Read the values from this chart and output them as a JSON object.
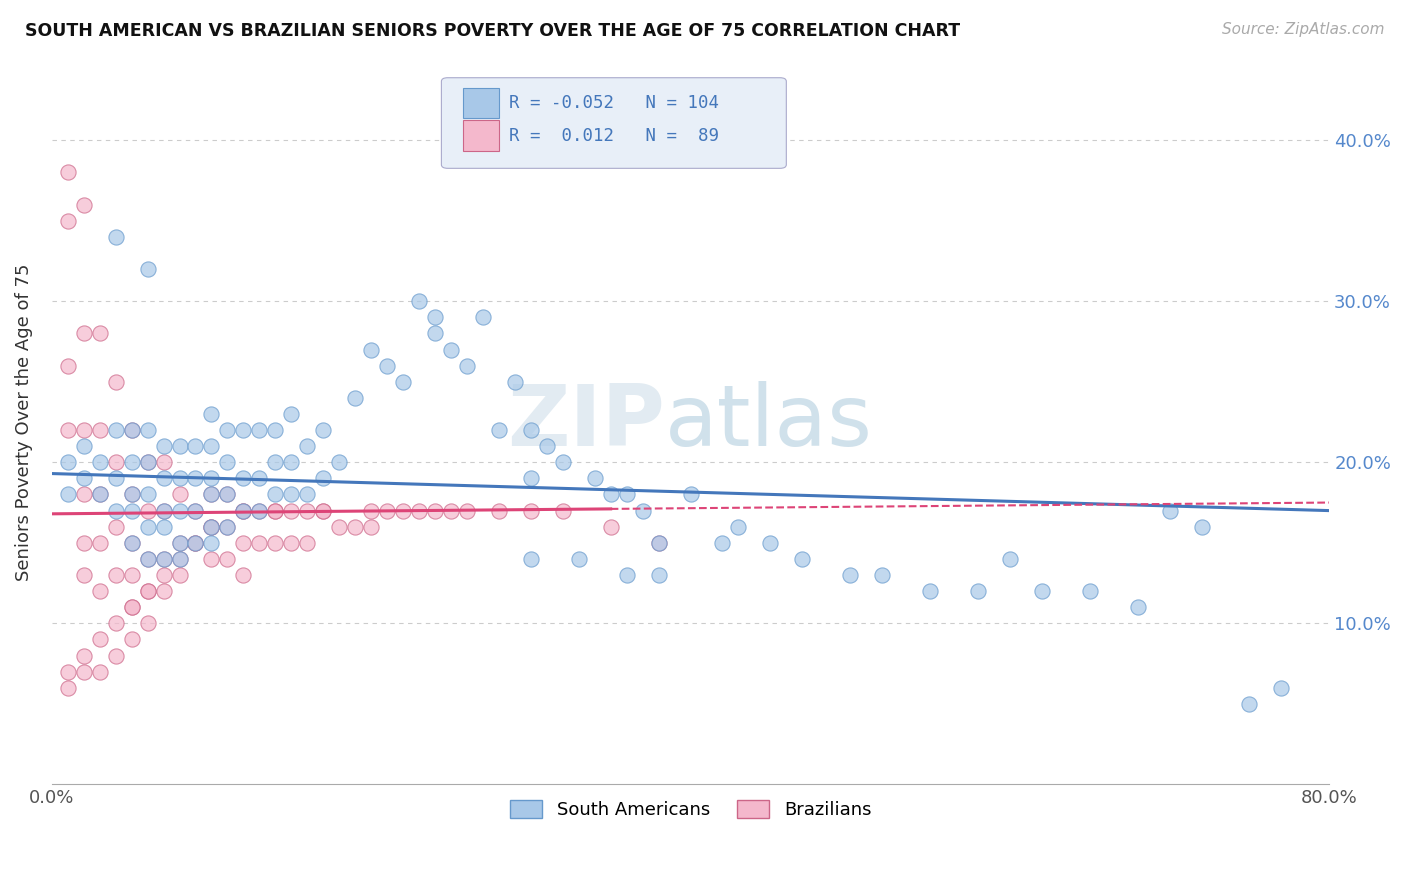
{
  "title": "SOUTH AMERICAN VS BRAZILIAN SENIORS POVERTY OVER THE AGE OF 75 CORRELATION CHART",
  "source": "Source: ZipAtlas.com",
  "ylabel": "Seniors Poverty Over the Age of 75",
  "xlim": [
    0.0,
    0.8
  ],
  "ylim": [
    0.0,
    0.45
  ],
  "grid_color": "#cccccc",
  "background_color": "#ffffff",
  "south_american_color": "#a8c8e8",
  "south_american_edge": "#6699cc",
  "brazilian_color": "#f4b8cc",
  "brazilian_edge": "#cc6688",
  "south_american_line_color": "#4477bb",
  "brazilian_line_color": "#dd4477",
  "r_south_american": -0.052,
  "n_south_american": 104,
  "r_brazilian": 0.012,
  "n_brazilian": 89,
  "legend_labels": [
    "South Americans",
    "Brazilians"
  ],
  "watermark_zip": "ZIP",
  "watermark_atlas": "atlas",
  "sa_trend_y0": 0.193,
  "sa_trend_y1": 0.17,
  "br_trend_y0": 0.168,
  "br_trend_y1": 0.175,
  "south_american_x": [
    0.01,
    0.01,
    0.02,
    0.02,
    0.03,
    0.03,
    0.04,
    0.04,
    0.04,
    0.05,
    0.05,
    0.05,
    0.05,
    0.05,
    0.06,
    0.06,
    0.06,
    0.06,
    0.06,
    0.07,
    0.07,
    0.07,
    0.07,
    0.07,
    0.08,
    0.08,
    0.08,
    0.08,
    0.08,
    0.09,
    0.09,
    0.09,
    0.09,
    0.1,
    0.1,
    0.1,
    0.1,
    0.1,
    0.1,
    0.11,
    0.11,
    0.11,
    0.11,
    0.12,
    0.12,
    0.12,
    0.13,
    0.13,
    0.13,
    0.14,
    0.14,
    0.14,
    0.15,
    0.15,
    0.15,
    0.16,
    0.16,
    0.17,
    0.17,
    0.18,
    0.19,
    0.2,
    0.21,
    0.22,
    0.23,
    0.24,
    0.24,
    0.25,
    0.26,
    0.27,
    0.28,
    0.29,
    0.3,
    0.3,
    0.31,
    0.32,
    0.34,
    0.35,
    0.36,
    0.37,
    0.4,
    0.43,
    0.45,
    0.47,
    0.5,
    0.52,
    0.55,
    0.58,
    0.6,
    0.62,
    0.65,
    0.68,
    0.7,
    0.72,
    0.75,
    0.77,
    0.38,
    0.42,
    0.3,
    0.33,
    0.36,
    0.38,
    0.04,
    0.06
  ],
  "south_american_y": [
    0.18,
    0.2,
    0.19,
    0.21,
    0.18,
    0.2,
    0.17,
    0.19,
    0.22,
    0.15,
    0.17,
    0.18,
    0.2,
    0.22,
    0.14,
    0.16,
    0.18,
    0.2,
    0.22,
    0.14,
    0.16,
    0.17,
    0.19,
    0.21,
    0.14,
    0.15,
    0.17,
    0.19,
    0.21,
    0.15,
    0.17,
    0.19,
    0.21,
    0.15,
    0.16,
    0.18,
    0.19,
    0.21,
    0.23,
    0.16,
    0.18,
    0.2,
    0.22,
    0.17,
    0.19,
    0.22,
    0.17,
    0.19,
    0.22,
    0.18,
    0.2,
    0.22,
    0.18,
    0.2,
    0.23,
    0.18,
    0.21,
    0.19,
    0.22,
    0.2,
    0.24,
    0.27,
    0.26,
    0.25,
    0.3,
    0.28,
    0.29,
    0.27,
    0.26,
    0.29,
    0.22,
    0.25,
    0.19,
    0.22,
    0.21,
    0.2,
    0.19,
    0.18,
    0.18,
    0.17,
    0.18,
    0.16,
    0.15,
    0.14,
    0.13,
    0.13,
    0.12,
    0.12,
    0.14,
    0.12,
    0.12,
    0.11,
    0.17,
    0.16,
    0.05,
    0.06,
    0.15,
    0.15,
    0.14,
    0.14,
    0.13,
    0.13,
    0.34,
    0.32
  ],
  "brazilian_x": [
    0.01,
    0.01,
    0.01,
    0.01,
    0.02,
    0.02,
    0.02,
    0.02,
    0.02,
    0.02,
    0.03,
    0.03,
    0.03,
    0.03,
    0.03,
    0.04,
    0.04,
    0.04,
    0.04,
    0.05,
    0.05,
    0.05,
    0.05,
    0.05,
    0.06,
    0.06,
    0.06,
    0.06,
    0.06,
    0.07,
    0.07,
    0.07,
    0.07,
    0.08,
    0.08,
    0.08,
    0.09,
    0.09,
    0.1,
    0.1,
    0.1,
    0.11,
    0.11,
    0.11,
    0.12,
    0.12,
    0.12,
    0.13,
    0.13,
    0.14,
    0.14,
    0.15,
    0.15,
    0.16,
    0.16,
    0.17,
    0.18,
    0.19,
    0.2,
    0.21,
    0.22,
    0.23,
    0.24,
    0.25,
    0.26,
    0.28,
    0.3,
    0.32,
    0.35,
    0.38,
    0.01,
    0.01,
    0.02,
    0.02,
    0.03,
    0.03,
    0.04,
    0.04,
    0.05,
    0.05,
    0.06,
    0.07,
    0.08,
    0.09,
    0.1,
    0.12,
    0.14,
    0.17,
    0.2
  ],
  "brazilian_y": [
    0.38,
    0.35,
    0.26,
    0.22,
    0.36,
    0.28,
    0.22,
    0.18,
    0.15,
    0.13,
    0.28,
    0.22,
    0.18,
    0.15,
    0.12,
    0.25,
    0.2,
    0.16,
    0.13,
    0.22,
    0.18,
    0.15,
    0.13,
    0.11,
    0.2,
    0.17,
    0.14,
    0.12,
    0.1,
    0.2,
    0.17,
    0.14,
    0.12,
    0.18,
    0.15,
    0.13,
    0.17,
    0.15,
    0.18,
    0.16,
    0.14,
    0.18,
    0.16,
    0.14,
    0.17,
    0.15,
    0.13,
    0.17,
    0.15,
    0.17,
    0.15,
    0.17,
    0.15,
    0.17,
    0.15,
    0.17,
    0.16,
    0.16,
    0.16,
    0.17,
    0.17,
    0.17,
    0.17,
    0.17,
    0.17,
    0.17,
    0.17,
    0.17,
    0.16,
    0.15,
    0.07,
    0.06,
    0.08,
    0.07,
    0.09,
    0.07,
    0.1,
    0.08,
    0.11,
    0.09,
    0.12,
    0.13,
    0.14,
    0.15,
    0.16,
    0.17,
    0.17,
    0.17,
    0.17
  ]
}
